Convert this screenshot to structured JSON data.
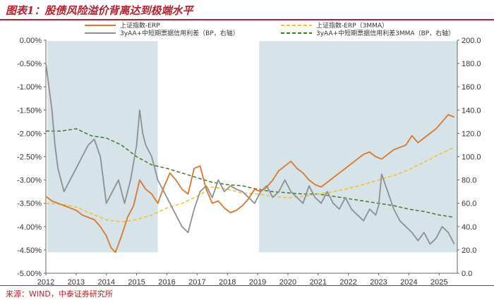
{
  "title": "图表1：股债风险溢价背离达到极端水平",
  "source": "来源：WIND，中泰证券研究所",
  "colors": {
    "erp": "#d9772b",
    "erp_ma": "#f2c21b",
    "spread": "#8c8f94",
    "spread_ma": "#3d7d2a",
    "shade": "#d6e3e8",
    "accent": "#b8202b"
  },
  "chart_data": {
    "type": "line",
    "x_ticks": [
      "2012",
      "2013",
      "2014",
      "2015",
      "2016",
      "2017",
      "2018",
      "2019",
      "2020",
      "2021",
      "2022",
      "2023",
      "2024",
      "2025"
    ],
    "xlim": [
      2012.0,
      2025.6
    ],
    "left_axis": {
      "ylim": [
        -5.0,
        0.0
      ],
      "ticks": [
        0,
        -0.5,
        -1,
        -1.5,
        -2,
        -2.5,
        -3,
        -3.5,
        -4,
        -4.5,
        -5
      ],
      "tick_labels": [
        "0.00%",
        "-0.50%",
        "-1.00%",
        "-1.50%",
        "-2.00%",
        "-2.50%",
        "-3.00%",
        "-3.50%",
        "-4.00%",
        "-4.50%",
        "-5.00%"
      ]
    },
    "right_axis": {
      "ylim": [
        0,
        200
      ],
      "ticks": [
        200,
        180,
        160,
        140,
        120,
        100,
        80,
        60,
        40,
        20,
        0
      ],
      "tick_labels": [
        "200.0",
        "180.0",
        "160.0",
        "140.0",
        "120.0",
        "100.0",
        "80.0",
        "60.0",
        "40.0",
        "20.0",
        "0.0"
      ]
    },
    "shaded_periods": [
      [
        2012.05,
        2015.7
      ],
      [
        2019.05,
        2025.6
      ]
    ],
    "legend": [
      {
        "label": "上证指数-ERP",
        "series": "erp"
      },
      {
        "label": "上证指数-ERP（3MMA）",
        "series": "erp_ma"
      },
      {
        "label": "3yAA+中短期票据信用利差（BP，右轴）",
        "series": "spread"
      },
      {
        "label": "3yAA+中短期票据信用利差3MMA（BP，右轴）",
        "series": "spread_ma"
      }
    ],
    "series": [
      {
        "key": "erp",
        "axis": "left",
        "style": "solid",
        "x": [
          2012.0,
          2012.2,
          2012.4,
          2012.6,
          2012.8,
          2013.0,
          2013.2,
          2013.4,
          2013.6,
          2013.8,
          2014.0,
          2014.15,
          2014.3,
          2014.5,
          2014.7,
          2014.9,
          2015.1,
          2015.3,
          2015.5,
          2015.7,
          2015.9,
          2016.1,
          2016.3,
          2016.5,
          2016.7,
          2016.9,
          2017.1,
          2017.3,
          2017.5,
          2017.7,
          2017.9,
          2018.1,
          2018.3,
          2018.5,
          2018.7,
          2018.9,
          2019.1,
          2019.3,
          2019.5,
          2019.7,
          2019.9,
          2020.1,
          2020.3,
          2020.5,
          2020.7,
          2020.9,
          2021.1,
          2021.3,
          2021.5,
          2021.7,
          2021.9,
          2022.1,
          2022.3,
          2022.5,
          2022.7,
          2022.9,
          2023.1,
          2023.3,
          2023.5,
          2023.7,
          2023.9,
          2024.1,
          2024.3,
          2024.5,
          2024.7,
          2024.9,
          2025.1,
          2025.3,
          2025.5
        ],
        "values": [
          -3.35,
          -3.45,
          -3.5,
          -3.55,
          -3.6,
          -3.65,
          -3.75,
          -3.8,
          -3.85,
          -4.0,
          -4.2,
          -4.45,
          -4.55,
          -4.2,
          -3.8,
          -3.55,
          -3.0,
          -3.2,
          -3.3,
          -3.5,
          -3.15,
          -2.85,
          -3.0,
          -3.2,
          -3.3,
          -2.75,
          -2.7,
          -3.2,
          -3.5,
          -3.45,
          -3.6,
          -3.7,
          -3.65,
          -3.55,
          -3.4,
          -3.2,
          -3.25,
          -3.15,
          -3.0,
          -2.8,
          -2.7,
          -2.6,
          -2.75,
          -2.85,
          -3.0,
          -3.1,
          -3.15,
          -3.05,
          -2.95,
          -2.85,
          -2.75,
          -2.65,
          -2.55,
          -2.45,
          -2.4,
          -2.5,
          -2.55,
          -2.45,
          -2.35,
          -2.3,
          -2.25,
          -2.05,
          -2.2,
          -2.1,
          -2.0,
          -1.9,
          -1.75,
          -1.6,
          -1.65
        ]
      },
      {
        "key": "erp_ma",
        "axis": "left",
        "style": "dashed",
        "x": [
          2012.0,
          2012.5,
          2013.0,
          2013.5,
          2014.0,
          2014.5,
          2015.0,
          2015.5,
          2016.0,
          2016.5,
          2017.0,
          2017.5,
          2018.0,
          2018.5,
          2019.0,
          2019.5,
          2020.0,
          2020.5,
          2021.0,
          2021.5,
          2022.0,
          2022.5,
          2023.0,
          2023.5,
          2024.0,
          2024.5,
          2025.0,
          2025.5
        ],
        "values": [
          -3.5,
          -3.52,
          -3.58,
          -3.72,
          -3.85,
          -3.9,
          -3.85,
          -3.75,
          -3.6,
          -3.5,
          -3.35,
          -3.15,
          -3.2,
          -3.28,
          -3.3,
          -3.35,
          -3.38,
          -3.35,
          -3.3,
          -3.25,
          -3.18,
          -3.1,
          -3.0,
          -2.9,
          -2.78,
          -2.62,
          -2.45,
          -2.3
        ]
      },
      {
        "key": "spread",
        "axis": "right",
        "style": "solid",
        "x": [
          2012.0,
          2012.1,
          2012.2,
          2012.3,
          2012.4,
          2012.6,
          2012.8,
          2013.0,
          2013.2,
          2013.4,
          2013.6,
          2013.8,
          2014.0,
          2014.2,
          2014.4,
          2014.6,
          2014.8,
          2015.0,
          2015.1,
          2015.2,
          2015.3,
          2015.5,
          2015.7,
          2015.9,
          2016.1,
          2016.3,
          2016.5,
          2016.7,
          2016.9,
          2017.1,
          2017.3,
          2017.5,
          2017.7,
          2017.9,
          2018.1,
          2018.3,
          2018.5,
          2018.7,
          2018.9,
          2019.1,
          2019.3,
          2019.5,
          2019.7,
          2019.9,
          2020.1,
          2020.3,
          2020.5,
          2020.7,
          2020.9,
          2021.1,
          2021.3,
          2021.5,
          2021.7,
          2021.9,
          2022.1,
          2022.3,
          2022.5,
          2022.7,
          2022.9,
          2023.0,
          2023.1,
          2023.3,
          2023.5,
          2023.7,
          2023.9,
          2024.1,
          2024.3,
          2024.5,
          2024.7,
          2024.9,
          2025.1,
          2025.3,
          2025.5
        ],
        "values": [
          180,
          160,
          140,
          110,
          90,
          70,
          80,
          90,
          100,
          110,
          115,
          100,
          60,
          70,
          80,
          60,
          80,
          110,
          140,
          120,
          110,
          100,
          80,
          70,
          60,
          50,
          40,
          35,
          55,
          70,
          75,
          65,
          80,
          70,
          75,
          72,
          70,
          65,
          60,
          70,
          75,
          65,
          70,
          80,
          70,
          65,
          60,
          75,
          65,
          60,
          70,
          60,
          55,
          65,
          55,
          50,
          45,
          55,
          50,
          58,
          85,
          70,
          55,
          45,
          40,
          35,
          28,
          35,
          25,
          30,
          40,
          35,
          25
        ]
      },
      {
        "key": "spread_ma",
        "axis": "right",
        "style": "dashed",
        "x": [
          2012.0,
          2012.5,
          2013.0,
          2013.5,
          2014.0,
          2014.5,
          2015.0,
          2015.5,
          2016.0,
          2016.5,
          2017.0,
          2017.5,
          2018.0,
          2018.5,
          2019.0,
          2019.5,
          2020.0,
          2020.5,
          2021.0,
          2021.5,
          2022.0,
          2022.5,
          2023.0,
          2023.5,
          2024.0,
          2024.5,
          2025.0,
          2025.5
        ],
        "values": [
          122,
          122,
          124,
          118,
          116,
          110,
          100,
          93,
          90,
          86,
          82,
          78,
          76,
          75,
          72,
          70,
          69,
          68,
          68,
          66,
          64,
          62,
          60,
          58,
          55,
          53,
          50,
          48
        ]
      }
    ]
  }
}
